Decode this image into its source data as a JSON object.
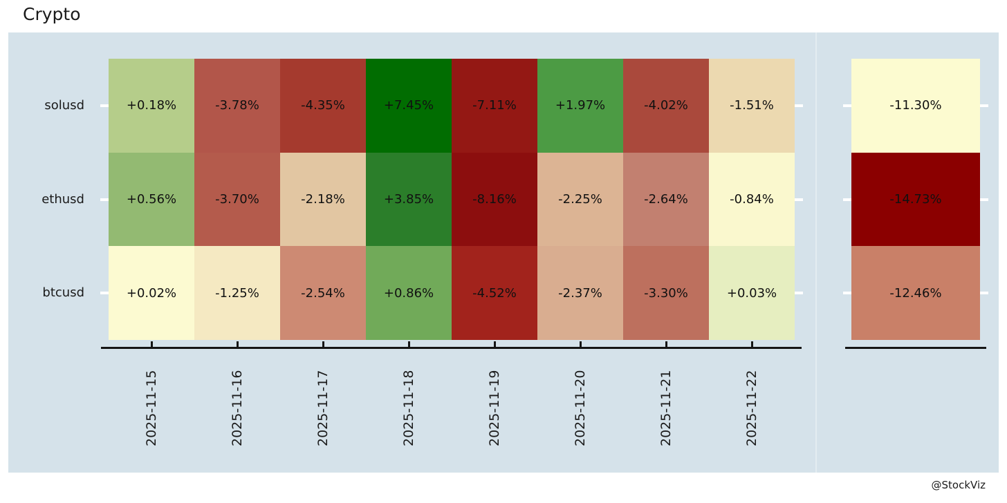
{
  "title": "Crypto",
  "attribution": "@StockViz",
  "colors": {
    "page_bg": "#ffffff",
    "panel_bg": "#d5e2ea",
    "axis": "#151515",
    "row_tick": "#ffffff",
    "cell_text": "#111111",
    "label_text": "#1a1a1a"
  },
  "chart_data": {
    "type": "heatmap",
    "title": "Crypto",
    "colormap": "RdYlGn",
    "legend": "none",
    "rows": [
      "solusd",
      "ethusd",
      "btcusd"
    ],
    "columns": [
      "2025-11-15",
      "2025-11-16",
      "2025-11-17",
      "2025-11-18",
      "2025-11-19",
      "2025-11-20",
      "2025-11-21",
      "2025-11-22"
    ],
    "values_pct": [
      [
        0.18,
        -3.78,
        -4.35,
        7.45,
        -7.11,
        1.97,
        -4.02,
        -1.51
      ],
      [
        0.56,
        -3.7,
        -2.18,
        3.85,
        -8.16,
        -2.25,
        -2.64,
        -0.84
      ],
      [
        0.02,
        -1.25,
        -2.54,
        0.86,
        -4.52,
        -2.37,
        -3.3,
        0.03
      ]
    ],
    "labels": [
      [
        "+0.18%",
        "-3.78%",
        "-4.35%",
        "+7.45%",
        "-7.11%",
        "+1.97%",
        "-4.02%",
        "-1.51%"
      ],
      [
        "+0.56%",
        "-3.70%",
        "-2.18%",
        "+3.85%",
        "-8.16%",
        "-2.25%",
        "-2.64%",
        "-0.84%"
      ],
      [
        "+0.02%",
        "-1.25%",
        "-2.54%",
        "+0.86%",
        "-4.52%",
        "-2.37%",
        "-3.30%",
        "+0.03%"
      ]
    ],
    "cell_colors": [
      [
        "#b5cd8a",
        "#b2564a",
        "#a53a2e",
        "#016d01",
        "#941814",
        "#4c9b44",
        "#aa493c",
        "#ecd9b0"
      ],
      [
        "#93ba72",
        "#b45b4c",
        "#e2c6a2",
        "#2b7e2a",
        "#8c0e0e",
        "#dcb494",
        "#c28070",
        "#faf8ce"
      ],
      [
        "#fcfad1",
        "#f5e9c2",
        "#cd8a73",
        "#71aa59",
        "#a2231c",
        "#d9ad90",
        "#bd705e",
        "#e6eec0"
      ]
    ],
    "totals": {
      "labels": [
        "-11.30%",
        "-14.73%",
        "-12.46%"
      ],
      "values_pct": [
        -11.3,
        -14.73,
        -12.46
      ],
      "colors": [
        "#fcfbd0",
        "#8b0000",
        "#c98068"
      ]
    }
  }
}
